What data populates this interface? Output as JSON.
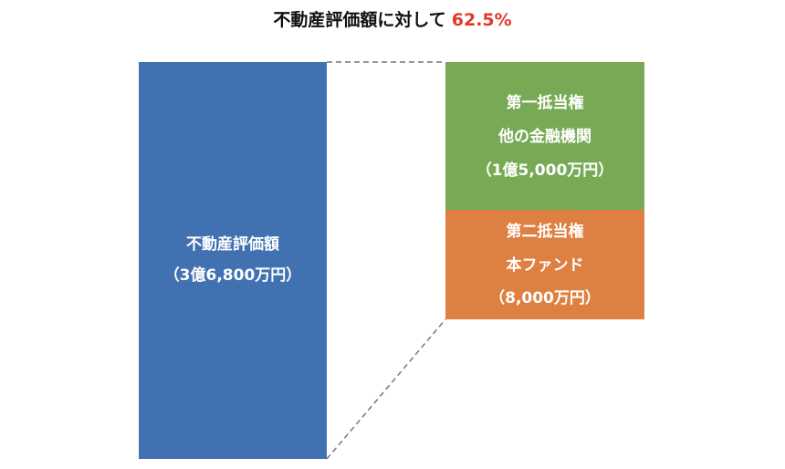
{
  "title": {
    "text": "不動産評価額に対して",
    "ratio": "62.5%"
  },
  "blocks": [
    {
      "lines": [
        "不動産評価額",
        "（3億6,800万円）"
      ]
    },
    {
      "lines": [
        "第一抵当権",
        "他の金融機関",
        "（1億5,000万円）"
      ]
    },
    {
      "lines": [
        "第二抵当権",
        "本ファンド",
        "（8,000万円）"
      ]
    }
  ]
}
